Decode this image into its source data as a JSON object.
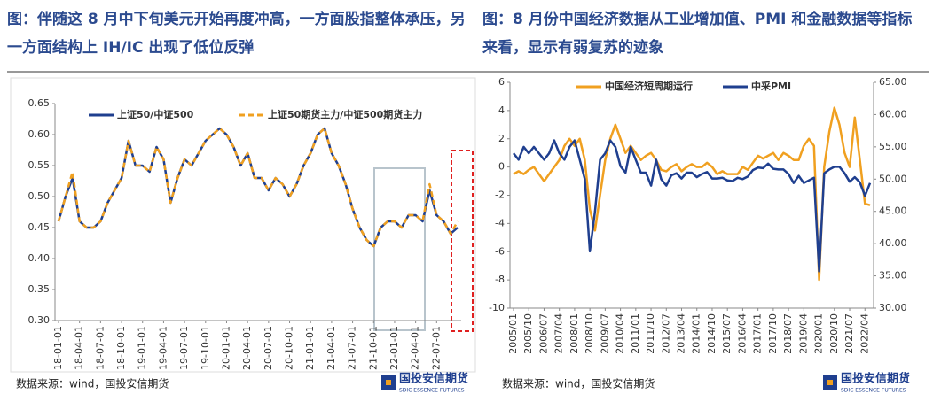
{
  "chart_data": [
    {
      "type": "line",
      "title": "图：伴随这 8 月中下旬美元开始再度冲高，一方面股指整体承压，另一方面结构上 IH/IC 出现了低位反弹",
      "source": "数据来源：wind，国投安信期货",
      "logo": "国投安信期货",
      "logo_subtitle": "SDIC ESSENCE FUTURES",
      "categories": [
        "18-01-01",
        null,
        null,
        "18-04-01",
        null,
        null,
        "18-07-01",
        null,
        null,
        "18-10-01",
        null,
        null,
        "19-01-01",
        null,
        null,
        "19-04-01",
        null,
        null,
        "19-07-01",
        null,
        null,
        "19-10-01",
        null,
        null,
        "20-01-01",
        null,
        null,
        "20-04-01",
        null,
        null,
        "20-07-01",
        null,
        null,
        "20-10-01",
        null,
        null,
        "21-01-01",
        null,
        null,
        "21-04-01",
        null,
        null,
        "21-07-01",
        null,
        null,
        "21-10-01",
        null,
        null,
        "22-01-01",
        null,
        null,
        "22-04-01",
        null,
        null,
        "22-07-01",
        null,
        null,
        null
      ],
      "series": [
        {
          "name": "上证50/中证500",
          "color": "#1f3f8f",
          "dash": false,
          "values": [
            0.46,
            0.5,
            0.53,
            0.46,
            0.45,
            0.45,
            0.46,
            0.49,
            0.51,
            0.53,
            0.59,
            0.55,
            0.55,
            0.54,
            0.58,
            0.56,
            0.49,
            0.53,
            0.56,
            0.55,
            0.57,
            0.59,
            0.6,
            0.61,
            0.6,
            0.58,
            0.55,
            0.57,
            0.53,
            0.53,
            0.51,
            0.53,
            0.52,
            0.5,
            0.52,
            0.55,
            0.57,
            0.6,
            0.61,
            0.57,
            0.55,
            0.52,
            0.48,
            0.45,
            0.43,
            0.42,
            0.45,
            0.46,
            0.46,
            0.45,
            0.47,
            0.47,
            0.46,
            0.51,
            0.47,
            0.46,
            0.44,
            0.45
          ]
        },
        {
          "name": "上证50期货主力/中证500期货主力",
          "color": "#f0a020",
          "dash": true,
          "values": [
            0.46,
            0.5,
            0.54,
            0.46,
            0.45,
            0.45,
            0.46,
            0.49,
            0.51,
            0.53,
            0.59,
            0.55,
            0.55,
            0.54,
            0.58,
            0.56,
            0.49,
            0.53,
            0.56,
            0.55,
            0.57,
            0.59,
            0.6,
            0.61,
            0.6,
            0.58,
            0.55,
            0.57,
            0.53,
            0.53,
            0.51,
            0.53,
            0.52,
            0.5,
            0.52,
            0.55,
            0.57,
            0.6,
            0.61,
            0.57,
            0.55,
            0.52,
            0.48,
            0.45,
            0.43,
            0.42,
            0.45,
            0.46,
            0.46,
            0.45,
            0.47,
            0.47,
            0.46,
            0.52,
            0.47,
            0.46,
            0.44,
            0.46
          ]
        }
      ],
      "ylim": [
        0.3,
        0.65
      ],
      "yticks": [
        {
          "value": 0.3,
          "label": "0.30"
        },
        {
          "value": 0.35,
          "label": "0.35"
        },
        {
          "value": 0.4,
          "label": "0.40"
        },
        {
          "value": 0.45,
          "label": "0.45"
        },
        {
          "value": 0.5,
          "label": "0.50"
        },
        {
          "value": 0.55,
          "label": "0.55"
        },
        {
          "value": 0.6,
          "label": "0.60"
        },
        {
          "value": 0.65,
          "label": "0.65"
        }
      ]
    },
    {
      "type": "line",
      "title": "图：8 月份中国经济数据从工业增加值、PMI 和金融数据等指标来看，显示有弱复苏的迹象",
      "source": "数据来源：wind，国投安信期货",
      "logo": "国投安信期货",
      "logo_subtitle": "SDIC ESSENCE FUTURES",
      "categories": [
        "2005/01",
        null,
        null,
        "2005/10",
        null,
        null,
        "2006/07",
        null,
        null,
        "2007/04",
        null,
        null,
        "2008/01",
        null,
        null,
        "2008/10",
        null,
        null,
        "2009/07",
        null,
        null,
        "2010/04",
        null,
        null,
        "2011/01",
        null,
        null,
        "2011/10",
        null,
        null,
        "2012/07",
        null,
        null,
        "2013/04",
        null,
        null,
        "2014/01",
        null,
        null,
        "2014/10",
        null,
        null,
        "2015/07",
        null,
        null,
        "2016/04",
        null,
        null,
        "2017/01",
        null,
        null,
        "2017/10",
        null,
        null,
        "2018/07",
        null,
        null,
        "2019/04",
        null,
        null,
        "2020/01",
        null,
        null,
        "2020/10",
        null,
        null,
        "2021/07",
        null,
        null,
        "2022/04",
        null
      ],
      "series": [
        {
          "name": "中国经济短周期运行",
          "color": "#f0a020",
          "axis": "y",
          "values": [
            -0.5,
            -0.3,
            -0.5,
            -0.2,
            0,
            -0.5,
            -1,
            -0.5,
            0,
            0.5,
            1.5,
            2,
            1.5,
            2,
            0.5,
            -3,
            -4.5,
            -2,
            0.5,
            2,
            3,
            2,
            1,
            1.5,
            1,
            0.5,
            0.8,
            1,
            0.5,
            -0.2,
            -0.3,
            0,
            0.2,
            -0.3,
            0,
            0.2,
            0,
            0,
            0.3,
            0,
            -0.5,
            -0.3,
            -0.5,
            -0.5,
            -0.5,
            0,
            -0.2,
            0.3,
            0.8,
            0.6,
            0.8,
            1,
            0.5,
            1,
            0.8,
            0.5,
            0.5,
            1.5,
            2,
            1.5,
            -8,
            0,
            2.5,
            4.2,
            3,
            1,
            0,
            3.5,
            0.5,
            -2.6,
            -2.7
          ]
        },
        {
          "name": "中采PMI",
          "color": "#1f3f8f",
          "axis": "y2",
          "values": [
            54,
            53,
            55,
            54,
            55,
            54,
            53,
            54,
            56,
            54,
            53,
            55,
            56,
            53,
            50,
            38.8,
            45,
            53,
            54,
            56,
            55,
            52,
            51,
            55,
            53,
            51,
            51,
            49,
            53,
            50,
            49,
            50.6,
            50.9,
            50.1,
            51,
            51,
            50.3,
            50.8,
            51.1,
            50.1,
            50.1,
            50.2,
            49.8,
            49.7,
            50.2,
            50,
            50.4,
            51.4,
            51.8,
            51.7,
            52.4,
            51.6,
            51.5,
            51.5,
            50.8,
            49.4,
            50.5,
            49.4,
            49.8,
            50.2,
            35.7,
            50.9,
            51.5,
            51.9,
            51.9,
            50.9,
            49.6,
            50.3,
            49.5,
            47.4,
            49.4
          ]
        }
      ],
      "ylim": [
        -10,
        6
      ],
      "yticks": [
        -10,
        -8,
        -6,
        -4,
        -2,
        0,
        2,
        4,
        6
      ],
      "y2lim": [
        30,
        65
      ],
      "y2ticks": [
        {
          "value": 30,
          "label": "30.00"
        },
        {
          "value": 35,
          "label": "35.00"
        },
        {
          "value": 40,
          "label": "40.00"
        },
        {
          "value": 45,
          "label": "45.00"
        },
        {
          "value": 50,
          "label": "50.00"
        },
        {
          "value": 55,
          "label": "55.00"
        },
        {
          "value": 60,
          "label": "60.00"
        },
        {
          "value": 65,
          "label": "65.00"
        }
      ]
    }
  ]
}
